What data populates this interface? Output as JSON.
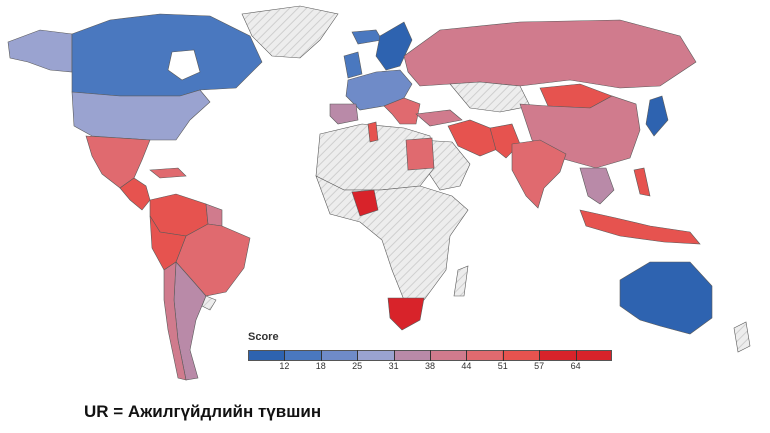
{
  "legend": {
    "title": "Score",
    "ticks": [
      "12",
      "18",
      "25",
      "31",
      "38",
      "44",
      "51",
      "57",
      "64"
    ],
    "colors": [
      "#2e63b0",
      "#4a78bf",
      "#6f8bc8",
      "#9aa3d0",
      "#b98aa8",
      "#d07b8d",
      "#e06a6f",
      "#e6534f",
      "#d8232a"
    ]
  },
  "caption": "UR = Ажилгүйдлийн түвшин",
  "colors": {
    "nodata": "#e9e9e9",
    "border": "#666666"
  }
}
